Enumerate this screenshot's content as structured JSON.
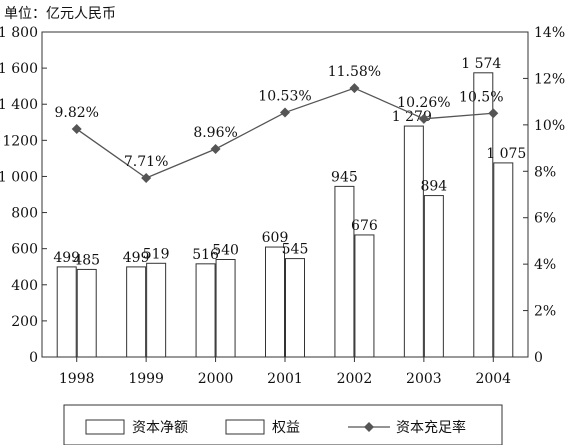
{
  "chart_data": {
    "type": "bar",
    "unit_label": "单位：亿元人民币",
    "categories": [
      "1998",
      "1999",
      "2000",
      "2001",
      "2002",
      "2003",
      "2004"
    ],
    "series": [
      {
        "name": "资本净额",
        "kind": "bar",
        "axis": "left",
        "values": [
          499,
          499,
          516,
          609,
          945,
          1279,
          1574
        ],
        "labels": [
          "499",
          "499",
          "516",
          "609",
          "945",
          "1 279",
          "1 574"
        ]
      },
      {
        "name": "权益",
        "kind": "bar",
        "axis": "left",
        "values": [
          485,
          519,
          540,
          545,
          676,
          894,
          1075
        ],
        "labels": [
          "485",
          "519",
          "540",
          "545",
          "676",
          "894",
          "1 075"
        ]
      },
      {
        "name": "资本充足率",
        "kind": "line",
        "axis": "right",
        "marker": "diamond",
        "values": [
          9.82,
          7.71,
          8.96,
          10.53,
          11.58,
          10.26,
          10.5
        ],
        "labels": [
          "9.82%",
          "7.71%",
          "8.96%",
          "10.53%",
          "11.58%",
          "10.26%",
          "10.5%"
        ]
      }
    ],
    "y_left": {
      "ylim": [
        0,
        1800
      ],
      "ticks": [
        0,
        200,
        400,
        600,
        800,
        1000,
        1200,
        1400,
        1600,
        1800
      ],
      "tick_labels": [
        "0",
        "200",
        "400",
        "600",
        "800",
        "1 000",
        "1200",
        "1 400",
        "1 600",
        "1 800"
      ]
    },
    "y_right": {
      "ylim": [
        0,
        14
      ],
      "ticks": [
        0,
        2,
        4,
        6,
        8,
        10,
        12,
        14
      ],
      "tick_labels": [
        "0",
        "2%",
        "4%",
        "6%",
        "8%",
        "10%",
        "12%",
        "14%"
      ]
    },
    "grid": false,
    "legend_position": "bottom",
    "colors": {
      "bar_fill": "#ffffff",
      "stroke": "#333333",
      "line": "#555555",
      "marker": "#555555"
    }
  }
}
